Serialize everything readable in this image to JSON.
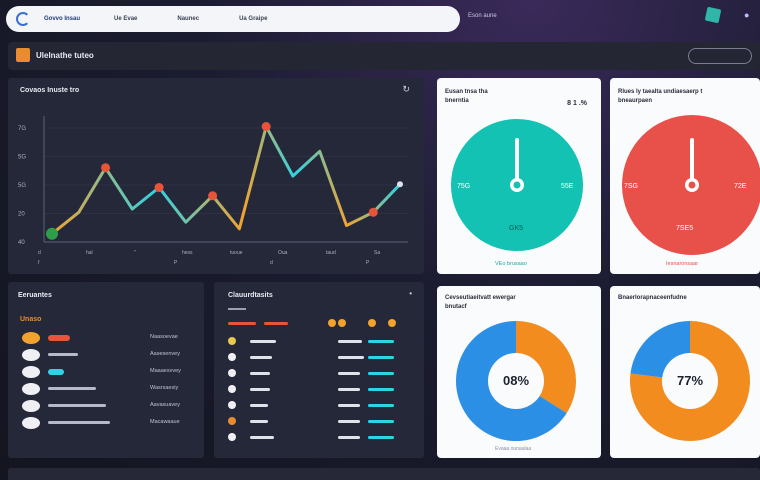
{
  "nav": {
    "brand": "Govvo Insau",
    "items": [
      "Ue Evae",
      "Naunec",
      "Ua Graipe"
    ],
    "right_link": "Eson aune"
  },
  "header": {
    "title": "Ulelnathe tuteo",
    "button": ""
  },
  "line_chart": {
    "title": "Covaos Inuste tro",
    "ytick_labels": [
      "7G",
      "5G",
      "5G",
      "20",
      "40"
    ],
    "xtick_labels": [
      "d",
      "hal",
      "\"",
      "hess",
      "tuoue",
      "Oua",
      "taud",
      "Sa"
    ],
    "xtick_sub": [
      "f",
      "P",
      "d",
      "P"
    ]
  },
  "chart_data": {
    "type": "line",
    "x": [
      1,
      2,
      3,
      4,
      5,
      6,
      7,
      8,
      9,
      10,
      11,
      12,
      13,
      14
    ],
    "series": [
      {
        "values": [
          5,
          18,
          45,
          20,
          33,
          12,
          28,
          8,
          70,
          40,
          55,
          10,
          18,
          35
        ]
      }
    ],
    "ylim": [
      0,
      80
    ],
    "grid": true,
    "colors": [
      "#2fd3e6",
      "#e8543a",
      "#f2a32f"
    ]
  },
  "gauge1": {
    "title_line1": "Eusan tnsa tha",
    "title_line2": "bnerntia",
    "value": "8 1 .%",
    "left_label": "75G",
    "right_label": "55E",
    "center": "GK5",
    "footer": "VEo brusaao",
    "color": "#13c2b3",
    "level": 0.81
  },
  "gauge2": {
    "title_line1": "Rlues ly taealta undiaesaerp t",
    "title_line2": "bneaurpaen",
    "left_label": "7SG",
    "right_label": "72E",
    "center": "7SE5",
    "footer": "Iesnaronsaar",
    "color": "#e8514a",
    "level": 0.72
  },
  "list": {
    "title": "Eeruantes",
    "header": "Unaso",
    "rows": [
      {
        "text": "Naasoevae"
      },
      {
        "text": "Aasesenvey"
      },
      {
        "text": "Maaaesvvey"
      },
      {
        "text": "Wasrsaesiy"
      },
      {
        "text": "Aavasuavey"
      },
      {
        "text": "Macawaaue"
      }
    ]
  },
  "table": {
    "title": "Clauurdtasits"
  },
  "donut1": {
    "title_line1": "Cevseutiaeitvatt ewergar",
    "title_line2": "bnutacf",
    "center": "08%",
    "footer": "Evaaa ounaalaa",
    "level": 0.34
  },
  "donut2": {
    "title_line1": "Bnaerlorapnaceenfudne",
    "center": "77%",
    "footer": "",
    "level": 0.77
  }
}
